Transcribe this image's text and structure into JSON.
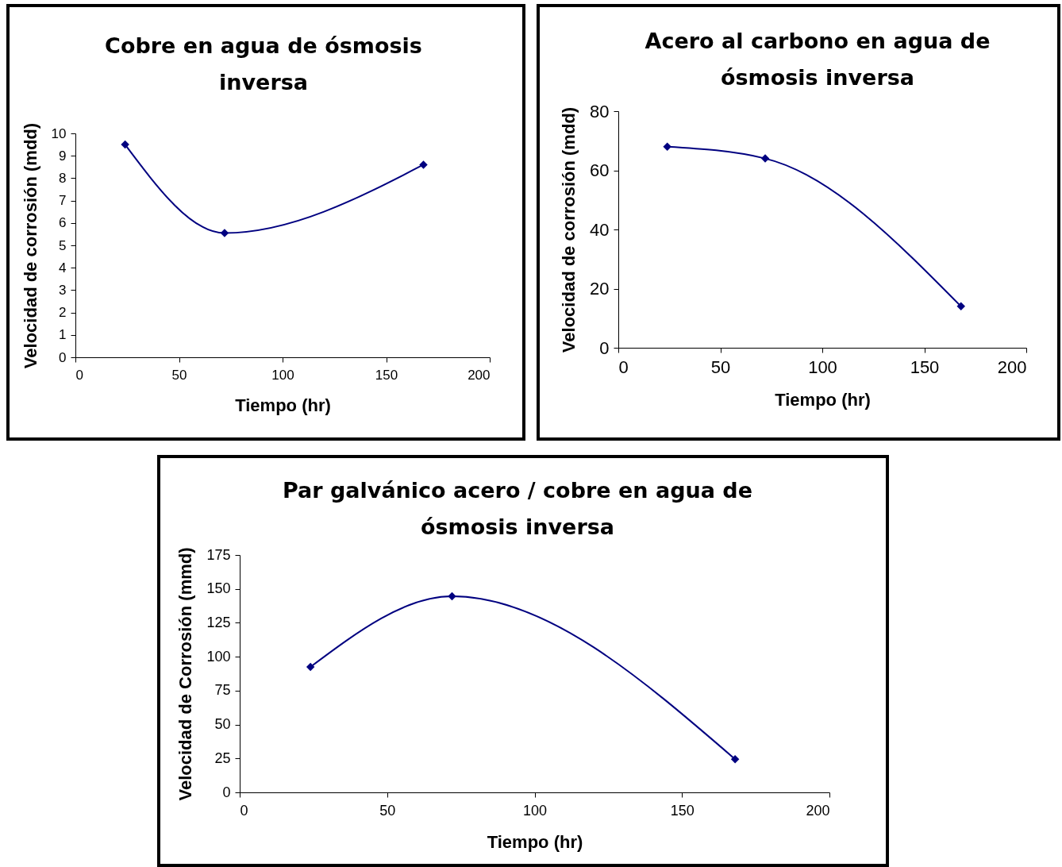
{
  "chart_data": [
    {
      "type": "line",
      "title": "Cobre en agua de ósmosis inversa",
      "xlabel": "Tiempo (hr)",
      "ylabel": "Velocidad de corrosión (mdd)",
      "x": [
        24,
        72,
        168
      ],
      "series": [
        {
          "color": "#000080",
          "values": [
            9.5,
            5.55,
            8.6
          ]
        }
      ],
      "xlim": [
        0,
        200
      ],
      "xticks": [
        0,
        50,
        100,
        150,
        200
      ],
      "ylim": [
        0,
        10
      ],
      "yticks": [
        0,
        1,
        2,
        3,
        4,
        5,
        6,
        7,
        8,
        9,
        10
      ],
      "marker": "diamond"
    },
    {
      "type": "line",
      "title": "Acero al carbono en agua de ósmosis inversa",
      "xlabel": "Tiempo (hr)",
      "ylabel": "Velocidad de corrosión (mdd)",
      "x": [
        24,
        72,
        168
      ],
      "series": [
        {
          "color": "#000080",
          "values": [
            68,
            64,
            14
          ]
        }
      ],
      "xlim": [
        0,
        200
      ],
      "xticks": [
        0,
        50,
        100,
        150,
        200
      ],
      "ylim": [
        0,
        80
      ],
      "yticks": [
        0,
        20,
        40,
        60,
        80
      ],
      "marker": "diamond"
    },
    {
      "type": "line",
      "title": "Par galvánico acero / cobre en agua de ósmosis inversa",
      "xlabel": "Tiempo (hr)",
      "ylabel": "Velocidad de Corrosión (mmd)",
      "x": [
        24,
        72,
        168
      ],
      "series": [
        {
          "color": "#000080",
          "values": [
            92.5,
            144.5,
            24.5
          ]
        }
      ],
      "xlim": [
        0,
        200
      ],
      "xticks": [
        0,
        50,
        100,
        150,
        200
      ],
      "ylim": [
        0,
        175
      ],
      "yticks": [
        0,
        25,
        50,
        75,
        100,
        125,
        150,
        175
      ],
      "marker": "diamond"
    }
  ]
}
